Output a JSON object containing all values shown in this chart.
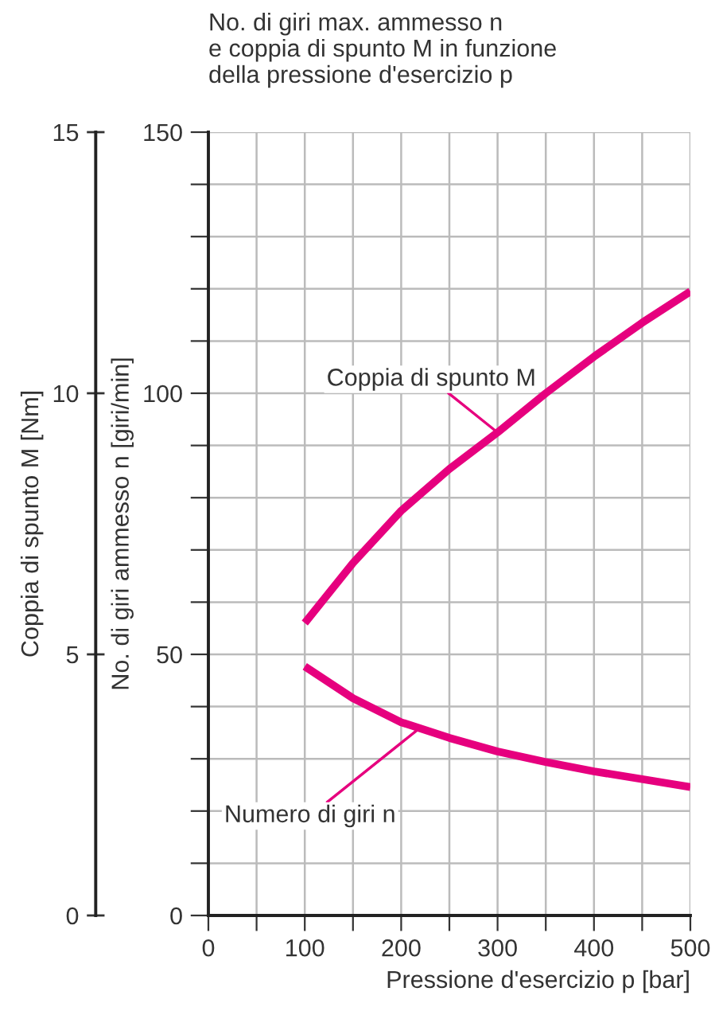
{
  "chart_data": {
    "type": "line",
    "title": "No. di giri max. ammesso n\ne coppia di spunto M in funzione\ndella pressione d'esercizio p",
    "xlabel": "Pressione d'esercizio p [bar]",
    "ylabel": "No. di giri ammesso n [giri/min]",
    "y2label": "Coppia di spunto M [Nm]",
    "x": [
      100,
      150,
      200,
      250,
      300,
      350,
      400,
      450,
      500
    ],
    "series": [
      {
        "color": "#e6007e",
        "axis": "y2",
        "values": [
          5.6,
          6.75,
          7.75,
          8.55,
          9.25,
          10.0,
          10.7,
          11.35,
          11.95
        ]
      },
      {
        "color": "#e6007e",
        "values": [
          47.7,
          41.6,
          37.0,
          34.0,
          31.4,
          29.4,
          27.6,
          26.1,
          24.6
        ]
      }
    ],
    "annotations": [
      {
        "text": "Coppia di spunto M",
        "x": 300,
        "y": 92.5
      },
      {
        "text": "Numero di giri n",
        "x": 220,
        "y": 36
      }
    ],
    "xlim": [
      0,
      500
    ],
    "xticks": [
      0,
      {
        "value": 50,
        "label": null
      },
      100,
      {
        "value": 150,
        "label": null
      },
      200,
      {
        "value": 250,
        "label": null
      },
      300,
      {
        "value": 350,
        "label": null
      },
      400,
      {
        "value": 450,
        "label": null
      },
      500
    ],
    "ylim": [
      0,
      150
    ],
    "yticks": [
      0,
      {
        "value": 10,
        "label": null
      },
      {
        "value": 20,
        "label": null
      },
      {
        "value": 30,
        "label": null
      },
      {
        "value": 40,
        "label": null
      },
      50,
      {
        "value": 60,
        "label": null
      },
      {
        "value": 70,
        "label": null
      },
      {
        "value": 80,
        "label": null
      },
      {
        "value": 90,
        "label": null
      },
      100,
      {
        "value": 110,
        "label": null
      },
      {
        "value": 120,
        "label": null
      },
      {
        "value": 130,
        "label": null
      },
      {
        "value": 140,
        "label": null
      },
      150
    ],
    "y2lim": [
      0,
      15
    ],
    "y2ticks": [
      0,
      5,
      10,
      15
    ],
    "grid": true,
    "marker": "none",
    "line_style": "solid",
    "legend": false
  }
}
